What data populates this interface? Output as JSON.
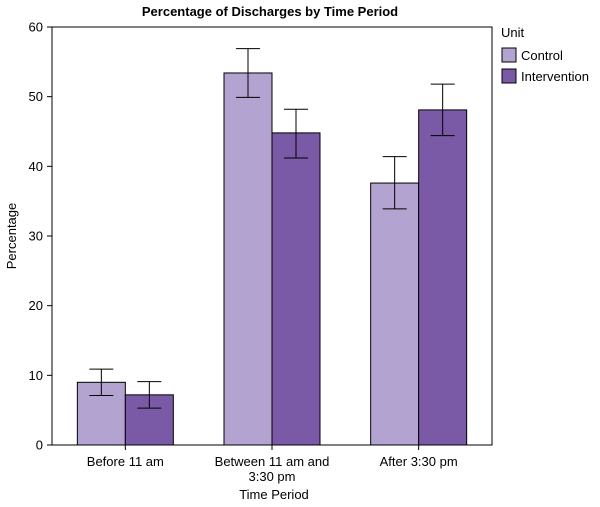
{
  "chart_data": {
    "type": "bar",
    "title": "Percentage of Discharges by Time Period",
    "xlabel": "Time Period",
    "ylabel": "Percentage",
    "ylim": [
      0,
      60
    ],
    "yticks": [
      "0",
      "10",
      "20",
      "30",
      "40",
      "50",
      "60"
    ],
    "categories": [
      [
        "Before 11 am"
      ],
      [
        "Between 11 am and",
        "3:30 pm"
      ],
      [
        "After 3:30 pm"
      ]
    ],
    "legend": {
      "title": "Unit",
      "placement": "top-right, outside plot"
    },
    "grid": false,
    "series": [
      {
        "name": "Control",
        "color": "#b3a3d1",
        "values": [
          9.0,
          53.4,
          37.6
        ],
        "err_low": [
          7.1,
          49.9,
          33.9
        ],
        "err_high": [
          10.9,
          56.9,
          41.4
        ]
      },
      {
        "name": "Intervention",
        "color": "#7a5aa6",
        "values": [
          7.2,
          44.8,
          48.1
        ],
        "err_low": [
          5.3,
          41.2,
          44.4
        ],
        "err_high": [
          9.1,
          48.2,
          51.8
        ]
      }
    ]
  }
}
